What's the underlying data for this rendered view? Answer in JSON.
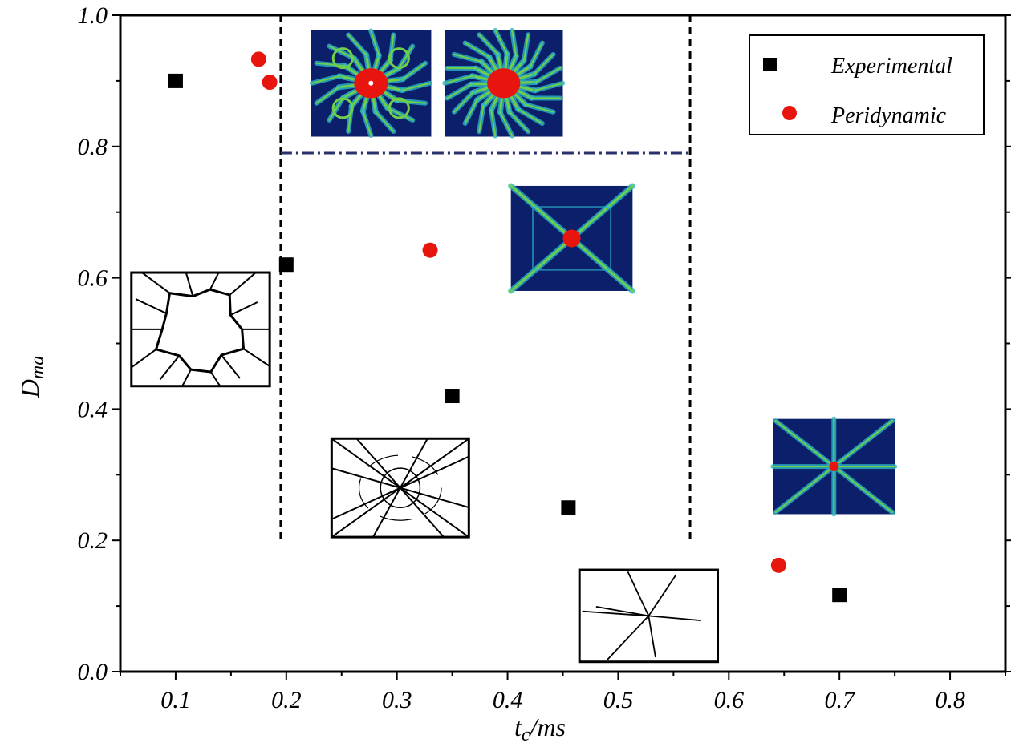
{
  "chart_data": {
    "type": "scatter",
    "title": "",
    "xlabel": {
      "main": "t",
      "sub": "c",
      "rest": "/ms"
    },
    "ylabel": {
      "main": "D",
      "sub": "ma"
    },
    "xlim": [
      0.05,
      0.85
    ],
    "ylim": [
      0.0,
      1.0
    ],
    "x_ticks": [
      0.1,
      0.2,
      0.3,
      0.4,
      0.5,
      0.6,
      0.7,
      0.8
    ],
    "x_tick_labels": [
      "0.1",
      "0.2",
      "0.3",
      "0.4",
      "0.5",
      "0.6",
      "0.7",
      "0.8"
    ],
    "y_ticks": [
      0.0,
      0.2,
      0.4,
      0.6,
      0.8,
      1.0
    ],
    "y_tick_labels": [
      "0.0",
      "0.2",
      "0.4",
      "0.6",
      "0.8",
      "1.0"
    ],
    "grid": false,
    "legend_position": "top-right",
    "series": [
      {
        "name": "Experimental",
        "marker": "square",
        "color": "#000000",
        "points": [
          {
            "x": 0.1,
            "y": 0.9
          },
          {
            "x": 0.2,
            "y": 0.62
          },
          {
            "x": 0.35,
            "y": 0.42
          },
          {
            "x": 0.455,
            "y": 0.25
          },
          {
            "x": 0.7,
            "y": 0.117
          }
        ]
      },
      {
        "name": "Peridynamic",
        "marker": "circle",
        "color": "#e8150f",
        "points": [
          {
            "x": 0.175,
            "y": 0.933
          },
          {
            "x": 0.185,
            "y": 0.898
          },
          {
            "x": 0.33,
            "y": 0.642
          },
          {
            "x": 0.645,
            "y": 0.162
          }
        ]
      }
    ],
    "reference_lines": [
      {
        "orientation": "vertical",
        "x": 0.195,
        "y_range": [
          0.195,
          1.0
        ],
        "style": "dashed",
        "color": "#000000"
      },
      {
        "orientation": "vertical",
        "x": 0.565,
        "y_range": [
          0.195,
          1.0
        ],
        "style": "dashed",
        "color": "#000000"
      },
      {
        "orientation": "horizontal",
        "y": 0.79,
        "x_range": [
          0.195,
          0.565
        ],
        "style": "dash-dot",
        "color": "#2a2f6e"
      }
    ],
    "insets": [
      {
        "kind": "simulation",
        "pattern": "dense",
        "x_range": [
          0.222,
          0.331
        ],
        "y_range": [
          0.815,
          0.978
        ]
      },
      {
        "kind": "simulation",
        "pattern": "branching",
        "x_range": [
          0.343,
          0.45
        ],
        "y_range": [
          0.815,
          0.978
        ]
      },
      {
        "kind": "simulation",
        "pattern": "x-cross",
        "x_range": [
          0.403,
          0.513
        ],
        "y_range": [
          0.58,
          0.74
        ]
      },
      {
        "kind": "simulation",
        "pattern": "star",
        "x_range": [
          0.64,
          0.75
        ],
        "y_range": [
          0.24,
          0.385
        ]
      },
      {
        "kind": "experiment",
        "pattern": "hole",
        "x_range": [
          0.06,
          0.185
        ],
        "y_range": [
          0.435,
          0.608
        ]
      },
      {
        "kind": "experiment",
        "pattern": "radial-ring",
        "x_range": [
          0.241,
          0.365
        ],
        "y_range": [
          0.205,
          0.355
        ]
      },
      {
        "kind": "experiment",
        "pattern": "few-radial",
        "x_range": [
          0.465,
          0.59
        ],
        "y_range": [
          0.015,
          0.155
        ]
      }
    ]
  }
}
